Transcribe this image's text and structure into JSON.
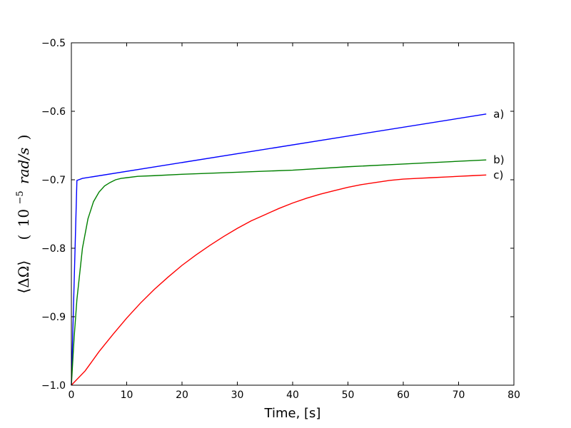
{
  "chart_data": {
    "type": "line",
    "title": "",
    "xlabel": "Time, [s]",
    "ylabel": {
      "left_part": "⟨ΔΩ⟩",
      "unit_open": "(",
      "unit_base": "10",
      "unit_exp": "−5",
      "unit_rest": "rad/s",
      "unit_close": ")"
    },
    "xlim": [
      0,
      80
    ],
    "ylim": [
      -1.0,
      -0.5
    ],
    "x_ticks": [
      0,
      10,
      20,
      30,
      40,
      50,
      60,
      70,
      80
    ],
    "x_tick_labels": [
      "0",
      "10",
      "20",
      "30",
      "40",
      "50",
      "60",
      "70",
      "80"
    ],
    "y_ticks": [
      -1.0,
      -0.9,
      -0.8,
      -0.7,
      -0.6,
      -0.5
    ],
    "y_tick_labels": [
      "−1.0",
      "−0.9",
      "−0.8",
      "−0.7",
      "−0.6",
      "−0.5"
    ],
    "grid": false,
    "series": [
      {
        "name": "a)",
        "color": "#0000ff",
        "points": [
          [
            0,
            -1.0
          ],
          [
            1,
            -0.701
          ],
          [
            2,
            -0.698
          ],
          [
            75,
            -0.604
          ]
        ]
      },
      {
        "name": "b)",
        "color": "#008000",
        "points": [
          [
            0,
            -1.0
          ],
          [
            0.5,
            -0.93
          ],
          [
            1,
            -0.875
          ],
          [
            2,
            -0.8
          ],
          [
            3,
            -0.757
          ],
          [
            4,
            -0.732
          ],
          [
            5,
            -0.718
          ],
          [
            6,
            -0.709
          ],
          [
            7,
            -0.704
          ],
          [
            8,
            -0.7
          ],
          [
            9,
            -0.698
          ],
          [
            10,
            -0.697
          ],
          [
            12,
            -0.695
          ],
          [
            15,
            -0.694
          ],
          [
            20,
            -0.692
          ],
          [
            30,
            -0.689
          ],
          [
            40,
            -0.686
          ],
          [
            50,
            -0.681
          ],
          [
            60,
            -0.677
          ],
          [
            70,
            -0.673
          ],
          [
            75,
            -0.671
          ]
        ]
      },
      {
        "name": "c)",
        "color": "#ff0000",
        "points": [
          [
            0,
            -1.0
          ],
          [
            2.5,
            -0.979
          ],
          [
            5,
            -0.951
          ],
          [
            7.5,
            -0.926
          ],
          [
            10,
            -0.902
          ],
          [
            12.5,
            -0.88
          ],
          [
            15,
            -0.86
          ],
          [
            17.5,
            -0.842
          ],
          [
            20,
            -0.825
          ],
          [
            22.5,
            -0.81
          ],
          [
            25,
            -0.796
          ],
          [
            27.5,
            -0.783
          ],
          [
            30,
            -0.771
          ],
          [
            32.5,
            -0.76
          ],
          [
            35,
            -0.751
          ],
          [
            37.5,
            -0.742
          ],
          [
            40,
            -0.734
          ],
          [
            42.5,
            -0.727
          ],
          [
            45,
            -0.721
          ],
          [
            47.5,
            -0.716
          ],
          [
            50,
            -0.711
          ],
          [
            52.5,
            -0.707
          ],
          [
            55,
            -0.704
          ],
          [
            57.5,
            -0.701
          ],
          [
            60,
            -0.699
          ],
          [
            62.5,
            -0.698
          ],
          [
            65,
            -0.697
          ],
          [
            67.5,
            -0.696
          ],
          [
            70,
            -0.695
          ],
          [
            72.5,
            -0.694
          ],
          [
            75,
            -0.693
          ]
        ]
      }
    ]
  }
}
